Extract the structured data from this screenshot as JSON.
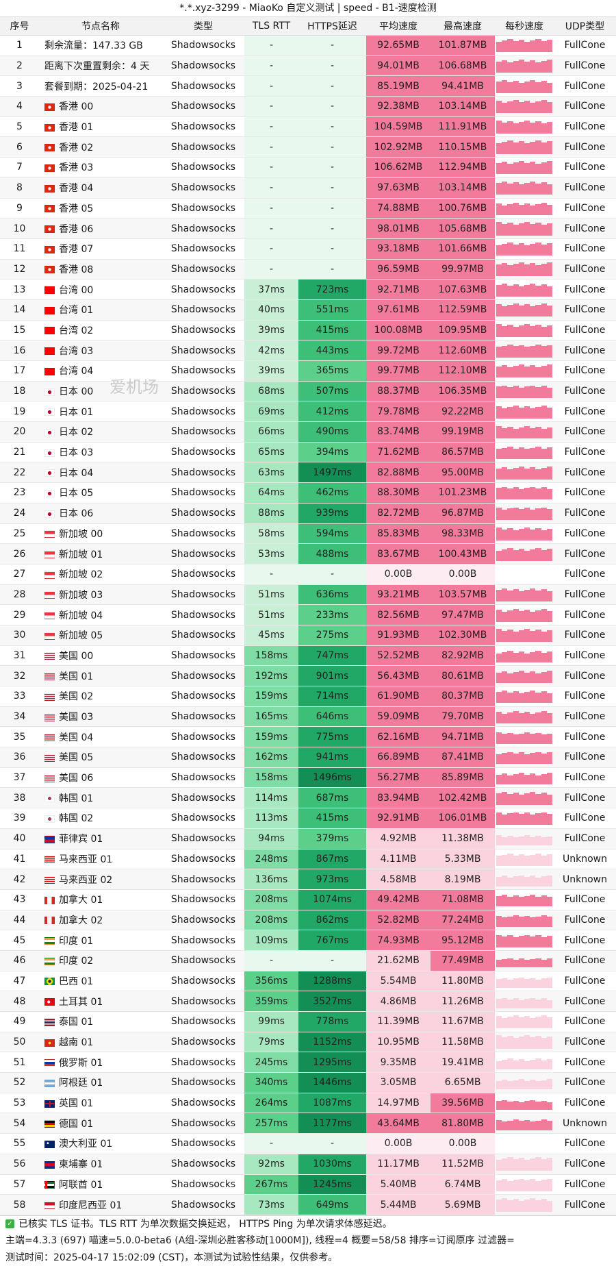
{
  "title": "*.*.xyz-3299 - MiaoKo 自定义测试 | speed - B1-速度检测",
  "watermark": "爱机场",
  "headers": [
    "序号",
    "节点名称",
    "类型",
    "TLS RTT",
    "HTTPS延迟",
    "平均速度",
    "最高速度",
    "每秒速度",
    "UDP类型"
  ],
  "colors": {
    "empty": "#e8f8ee",
    "rtt_shades": [
      "#c9f0d6",
      "#a8e8c0",
      "#7fdca4",
      "#5ccf8b"
    ],
    "https_shades": [
      "#5ccf8b",
      "#3dbf77",
      "#22a866",
      "#138f55"
    ],
    "speed_high": "#f27a9b",
    "speed_low": "#fbd3de",
    "spark": "#f27a9b"
  },
  "rows": [
    {
      "n": "1",
      "name": "剩余流量：147.33 GB",
      "flag": "",
      "type": "Shadowsocks",
      "rtt": "-",
      "https": "-",
      "avg": "92.65MB",
      "max": "101.87MB",
      "udp": "FullCone"
    },
    {
      "n": "2",
      "name": "距离下次重置剩余：4 天",
      "flag": "",
      "type": "Shadowsocks",
      "rtt": "-",
      "https": "-",
      "avg": "94.01MB",
      "max": "106.68MB",
      "udp": "FullCone"
    },
    {
      "n": "3",
      "name": "套餐到期：2025-04-21",
      "flag": "",
      "type": "Shadowsocks",
      "rtt": "-",
      "https": "-",
      "avg": "85.19MB",
      "max": "94.41MB",
      "udp": "FullCone"
    },
    {
      "n": "4",
      "name": "香港 00",
      "flag": "hk",
      "type": "Shadowsocks",
      "rtt": "-",
      "https": "-",
      "avg": "92.38MB",
      "max": "103.14MB",
      "udp": "FullCone"
    },
    {
      "n": "5",
      "name": "香港 01",
      "flag": "hk",
      "type": "Shadowsocks",
      "rtt": "-",
      "https": "-",
      "avg": "104.59MB",
      "max": "111.91MB",
      "udp": "FullCone"
    },
    {
      "n": "6",
      "name": "香港 02",
      "flag": "hk",
      "type": "Shadowsocks",
      "rtt": "-",
      "https": "-",
      "avg": "102.92MB",
      "max": "110.15MB",
      "udp": "FullCone"
    },
    {
      "n": "7",
      "name": "香港 03",
      "flag": "hk",
      "type": "Shadowsocks",
      "rtt": "-",
      "https": "-",
      "avg": "106.62MB",
      "max": "112.94MB",
      "udp": "FullCone"
    },
    {
      "n": "8",
      "name": "香港 04",
      "flag": "hk",
      "type": "Shadowsocks",
      "rtt": "-",
      "https": "-",
      "avg": "97.63MB",
      "max": "103.14MB",
      "udp": "FullCone"
    },
    {
      "n": "9",
      "name": "香港 05",
      "flag": "hk",
      "type": "Shadowsocks",
      "rtt": "-",
      "https": "-",
      "avg": "74.88MB",
      "max": "100.76MB",
      "udp": "FullCone"
    },
    {
      "n": "10",
      "name": "香港 06",
      "flag": "hk",
      "type": "Shadowsocks",
      "rtt": "-",
      "https": "-",
      "avg": "98.01MB",
      "max": "105.68MB",
      "udp": "FullCone"
    },
    {
      "n": "11",
      "name": "香港 07",
      "flag": "hk",
      "type": "Shadowsocks",
      "rtt": "-",
      "https": "-",
      "avg": "93.18MB",
      "max": "101.66MB",
      "udp": "FullCone"
    },
    {
      "n": "12",
      "name": "香港 08",
      "flag": "hk",
      "type": "Shadowsocks",
      "rtt": "-",
      "https": "-",
      "avg": "96.59MB",
      "max": "99.97MB",
      "udp": "FullCone"
    },
    {
      "n": "13",
      "name": "台湾 00",
      "flag": "tw",
      "type": "Shadowsocks",
      "rtt": "37ms",
      "https": "723ms",
      "avg": "92.71MB",
      "max": "107.63MB",
      "udp": "FullCone"
    },
    {
      "n": "14",
      "name": "台湾 01",
      "flag": "tw",
      "type": "Shadowsocks",
      "rtt": "40ms",
      "https": "551ms",
      "avg": "97.61MB",
      "max": "112.59MB",
      "udp": "FullCone"
    },
    {
      "n": "15",
      "name": "台湾 02",
      "flag": "tw",
      "type": "Shadowsocks",
      "rtt": "39ms",
      "https": "415ms",
      "avg": "100.08MB",
      "max": "109.95MB",
      "udp": "FullCone"
    },
    {
      "n": "16",
      "name": "台湾 03",
      "flag": "tw",
      "type": "Shadowsocks",
      "rtt": "42ms",
      "https": "443ms",
      "avg": "99.72MB",
      "max": "112.60MB",
      "udp": "FullCone"
    },
    {
      "n": "17",
      "name": "台湾 04",
      "flag": "tw",
      "type": "Shadowsocks",
      "rtt": "39ms",
      "https": "365ms",
      "avg": "99.77MB",
      "max": "112.10MB",
      "udp": "FullCone"
    },
    {
      "n": "18",
      "name": "日本 00",
      "flag": "jp",
      "type": "Shadowsocks",
      "rtt": "68ms",
      "https": "507ms",
      "avg": "88.37MB",
      "max": "106.35MB",
      "udp": "FullCone"
    },
    {
      "n": "19",
      "name": "日本 01",
      "flag": "jp",
      "type": "Shadowsocks",
      "rtt": "69ms",
      "https": "412ms",
      "avg": "79.78MB",
      "max": "92.22MB",
      "udp": "FullCone"
    },
    {
      "n": "20",
      "name": "日本 02",
      "flag": "jp",
      "type": "Shadowsocks",
      "rtt": "66ms",
      "https": "490ms",
      "avg": "83.74MB",
      "max": "99.19MB",
      "udp": "FullCone"
    },
    {
      "n": "21",
      "name": "日本 03",
      "flag": "jp",
      "type": "Shadowsocks",
      "rtt": "65ms",
      "https": "394ms",
      "avg": "71.62MB",
      "max": "86.57MB",
      "udp": "FullCone"
    },
    {
      "n": "22",
      "name": "日本 04",
      "flag": "jp",
      "type": "Shadowsocks",
      "rtt": "63ms",
      "https": "1497ms",
      "avg": "82.88MB",
      "max": "95.00MB",
      "udp": "FullCone"
    },
    {
      "n": "23",
      "name": "日本 05",
      "flag": "jp",
      "type": "Shadowsocks",
      "rtt": "64ms",
      "https": "462ms",
      "avg": "88.30MB",
      "max": "101.23MB",
      "udp": "FullCone"
    },
    {
      "n": "24",
      "name": "日本 06",
      "flag": "jp",
      "type": "Shadowsocks",
      "rtt": "88ms",
      "https": "939ms",
      "avg": "82.72MB",
      "max": "96.87MB",
      "udp": "FullCone"
    },
    {
      "n": "25",
      "name": "新加坡 00",
      "flag": "sg",
      "type": "Shadowsocks",
      "rtt": "58ms",
      "https": "594ms",
      "avg": "85.83MB",
      "max": "98.33MB",
      "udp": "FullCone"
    },
    {
      "n": "26",
      "name": "新加坡 01",
      "flag": "sg",
      "type": "Shadowsocks",
      "rtt": "53ms",
      "https": "488ms",
      "avg": "83.67MB",
      "max": "100.43MB",
      "udp": "FullCone"
    },
    {
      "n": "27",
      "name": "新加坡 02",
      "flag": "sg",
      "type": "Shadowsocks",
      "rtt": "-",
      "https": "-",
      "avg": "0.00B",
      "max": "0.00B",
      "udp": "FullCone"
    },
    {
      "n": "28",
      "name": "新加坡 03",
      "flag": "sg",
      "type": "Shadowsocks",
      "rtt": "51ms",
      "https": "636ms",
      "avg": "93.21MB",
      "max": "103.57MB",
      "udp": "FullCone"
    },
    {
      "n": "29",
      "name": "新加坡 04",
      "flag": "sg",
      "type": "Shadowsocks",
      "rtt": "51ms",
      "https": "233ms",
      "avg": "82.56MB",
      "max": "97.47MB",
      "udp": "FullCone"
    },
    {
      "n": "30",
      "name": "新加坡 05",
      "flag": "sg",
      "type": "Shadowsocks",
      "rtt": "45ms",
      "https": "275ms",
      "avg": "91.93MB",
      "max": "102.30MB",
      "udp": "FullCone"
    },
    {
      "n": "31",
      "name": "美国 00",
      "flag": "us",
      "type": "Shadowsocks",
      "rtt": "158ms",
      "https": "747ms",
      "avg": "52.52MB",
      "max": "82.92MB",
      "udp": "FullCone"
    },
    {
      "n": "32",
      "name": "美国 01",
      "flag": "us",
      "type": "Shadowsocks",
      "rtt": "192ms",
      "https": "901ms",
      "avg": "56.43MB",
      "max": "80.61MB",
      "udp": "FullCone"
    },
    {
      "n": "33",
      "name": "美国 02",
      "flag": "us",
      "type": "Shadowsocks",
      "rtt": "159ms",
      "https": "714ms",
      "avg": "61.90MB",
      "max": "80.37MB",
      "udp": "FullCone"
    },
    {
      "n": "34",
      "name": "美国 03",
      "flag": "us",
      "type": "Shadowsocks",
      "rtt": "165ms",
      "https": "646ms",
      "avg": "59.09MB",
      "max": "79.70MB",
      "udp": "FullCone"
    },
    {
      "n": "35",
      "name": "美国 04",
      "flag": "us",
      "type": "Shadowsocks",
      "rtt": "159ms",
      "https": "775ms",
      "avg": "62.16MB",
      "max": "94.71MB",
      "udp": "FullCone"
    },
    {
      "n": "36",
      "name": "美国 05",
      "flag": "us",
      "type": "Shadowsocks",
      "rtt": "162ms",
      "https": "941ms",
      "avg": "66.89MB",
      "max": "87.41MB",
      "udp": "FullCone"
    },
    {
      "n": "37",
      "name": "美国 06",
      "flag": "us",
      "type": "Shadowsocks",
      "rtt": "158ms",
      "https": "1496ms",
      "avg": "56.27MB",
      "max": "85.89MB",
      "udp": "FullCone"
    },
    {
      "n": "38",
      "name": "韩国 01",
      "flag": "kr",
      "type": "Shadowsocks",
      "rtt": "114ms",
      "https": "687ms",
      "avg": "83.94MB",
      "max": "102.42MB",
      "udp": "FullCone"
    },
    {
      "n": "39",
      "name": "韩国 02",
      "flag": "kr",
      "type": "Shadowsocks",
      "rtt": "113ms",
      "https": "415ms",
      "avg": "92.91MB",
      "max": "106.01MB",
      "udp": "FullCone"
    },
    {
      "n": "40",
      "name": "菲律宾 01",
      "flag": "ph",
      "type": "Shadowsocks",
      "rtt": "94ms",
      "https": "379ms",
      "avg": "4.92MB",
      "max": "11.38MB",
      "udp": "FullCone"
    },
    {
      "n": "41",
      "name": "马来西亚 01",
      "flag": "my",
      "type": "Shadowsocks",
      "rtt": "248ms",
      "https": "867ms",
      "avg": "4.11MB",
      "max": "5.33MB",
      "udp": "Unknown"
    },
    {
      "n": "42",
      "name": "马来西亚 02",
      "flag": "my",
      "type": "Shadowsocks",
      "rtt": "136ms",
      "https": "973ms",
      "avg": "4.58MB",
      "max": "8.19MB",
      "udp": "Unknown"
    },
    {
      "n": "43",
      "name": "加拿大 01",
      "flag": "ca",
      "type": "Shadowsocks",
      "rtt": "208ms",
      "https": "1074ms",
      "avg": "49.42MB",
      "max": "71.08MB",
      "udp": "FullCone"
    },
    {
      "n": "44",
      "name": "加拿大 02",
      "flag": "ca",
      "type": "Shadowsocks",
      "rtt": "208ms",
      "https": "862ms",
      "avg": "52.82MB",
      "max": "77.24MB",
      "udp": "FullCone"
    },
    {
      "n": "45",
      "name": "印度 01",
      "flag": "in",
      "type": "Shadowsocks",
      "rtt": "109ms",
      "https": "767ms",
      "avg": "74.93MB",
      "max": "95.12MB",
      "udp": "FullCone"
    },
    {
      "n": "46",
      "name": "印度 02",
      "flag": "in",
      "type": "Shadowsocks",
      "rtt": "-",
      "https": "-",
      "avg": "21.62MB",
      "max": "77.49MB",
      "udp": "FullCone"
    },
    {
      "n": "47",
      "name": "巴西 01",
      "flag": "br",
      "type": "Shadowsocks",
      "rtt": "356ms",
      "https": "1288ms",
      "avg": "5.54MB",
      "max": "11.80MB",
      "udp": "FullCone"
    },
    {
      "n": "48",
      "name": "土耳其 01",
      "flag": "tr",
      "type": "Shadowsocks",
      "rtt": "359ms",
      "https": "3527ms",
      "avg": "4.86MB",
      "max": "11.26MB",
      "udp": "FullCone"
    },
    {
      "n": "49",
      "name": "泰国 01",
      "flag": "th",
      "type": "Shadowsocks",
      "rtt": "99ms",
      "https": "778ms",
      "avg": "11.39MB",
      "max": "11.67MB",
      "udp": "FullCone"
    },
    {
      "n": "50",
      "name": "越南 01",
      "flag": "vn",
      "type": "Shadowsocks",
      "rtt": "79ms",
      "https": "1152ms",
      "avg": "10.95MB",
      "max": "11.58MB",
      "udp": "FullCone"
    },
    {
      "n": "51",
      "name": "俄罗斯 01",
      "flag": "ru",
      "type": "Shadowsocks",
      "rtt": "245ms",
      "https": "1295ms",
      "avg": "9.35MB",
      "max": "19.41MB",
      "udp": "FullCone"
    },
    {
      "n": "52",
      "name": "阿根廷 01",
      "flag": "ar",
      "type": "Shadowsocks",
      "rtt": "340ms",
      "https": "1446ms",
      "avg": "3.05MB",
      "max": "6.65MB",
      "udp": "FullCone"
    },
    {
      "n": "53",
      "name": "英国 01",
      "flag": "gb",
      "type": "Shadowsocks",
      "rtt": "264ms",
      "https": "1087ms",
      "avg": "14.97MB",
      "max": "39.56MB",
      "udp": "FullCone"
    },
    {
      "n": "54",
      "name": "德国 01",
      "flag": "de",
      "type": "Shadowsocks",
      "rtt": "257ms",
      "https": "1177ms",
      "avg": "43.64MB",
      "max": "81.80MB",
      "udp": "Unknown"
    },
    {
      "n": "55",
      "name": "澳大利亚 01",
      "flag": "au",
      "type": "Shadowsocks",
      "rtt": "-",
      "https": "-",
      "avg": "0.00B",
      "max": "0.00B",
      "udp": "FullCone"
    },
    {
      "n": "56",
      "name": "柬埔寨 01",
      "flag": "kh",
      "type": "Shadowsocks",
      "rtt": "92ms",
      "https": "1030ms",
      "avg": "11.17MB",
      "max": "11.52MB",
      "udp": "FullCone"
    },
    {
      "n": "57",
      "name": "阿联酋 01",
      "flag": "ae",
      "type": "Shadowsocks",
      "rtt": "267ms",
      "https": "1245ms",
      "avg": "5.40MB",
      "max": "6.74MB",
      "udp": "FullCone"
    },
    {
      "n": "58",
      "name": "印度尼西亚 01",
      "flag": "id",
      "type": "Shadowsocks",
      "rtt": "73ms",
      "https": "649ms",
      "avg": "5.44MB",
      "max": "5.69MB",
      "udp": "FullCone"
    }
  ],
  "footer": {
    "line1": "已核实 TLS 证书。TLS RTT 为单次数据交换延迟， HTTPS Ping 为单次请求体感延迟。",
    "line2": "主端=4.3.3 (697) 喵速=5.0.0-beta6 (A组-深圳必胜客移动[1000M]), 线程=4 概要=58/58 排序=订阅原序 过滤器=",
    "line3": "测试时间：2025-04-17 15:02:09 (CST)，本测试为试验性结果，仅供参考。"
  }
}
